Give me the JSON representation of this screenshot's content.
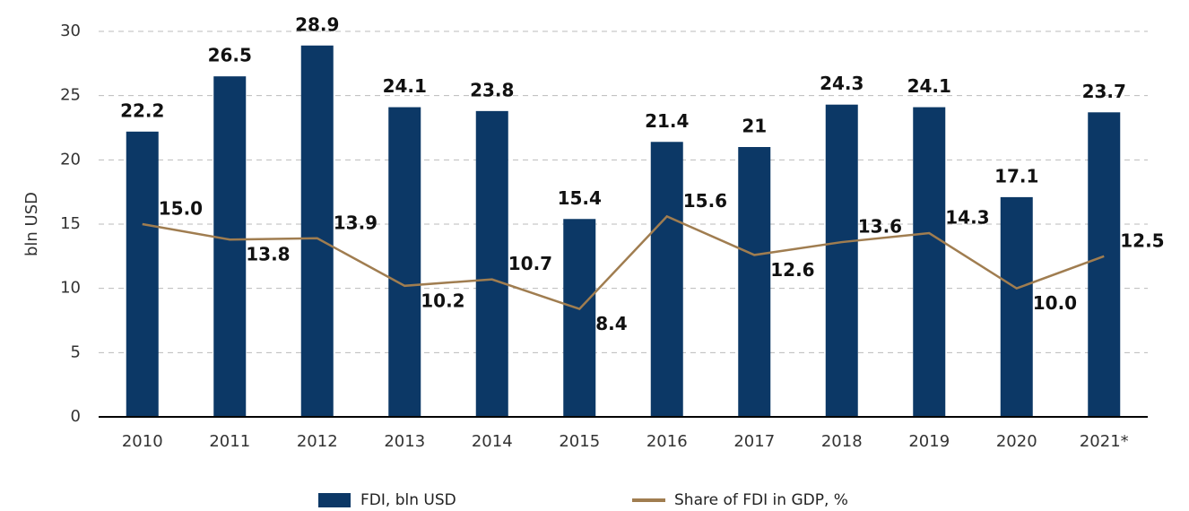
{
  "chart_data": {
    "type": "bar",
    "y_label": "bln USD",
    "categories": [
      "2010",
      "2011",
      "2012",
      "2013",
      "2014",
      "2015",
      "2016",
      "2017",
      "2018",
      "2019",
      "2020",
      "2021*"
    ],
    "series": [
      {
        "name": "FDI, bln USD",
        "type": "bar",
        "color": "#0c3866",
        "values": [
          22.2,
          26.5,
          28.9,
          24.1,
          23.8,
          15.4,
          21.4,
          21,
          24.3,
          24.1,
          17.1,
          23.7
        ]
      },
      {
        "name": "Share of FDI in GDP, %",
        "type": "line",
        "color": "#a07d50",
        "values": [
          15.0,
          13.8,
          13.9,
          10.2,
          10.7,
          8.4,
          15.6,
          12.6,
          13.6,
          14.3,
          10.0,
          12.5
        ],
        "value_labels": [
          "15.0",
          "13.8",
          "13.9",
          "10.2",
          "10.7",
          "8.4",
          "15.6",
          "12.6",
          "13.6",
          "14.3",
          "10.0",
          "12.5"
        ]
      }
    ],
    "ylim": [
      0,
      30
    ],
    "yticks": [
      0,
      5,
      10,
      15,
      20,
      25,
      30
    ],
    "grid": true,
    "legend": "bottom"
  }
}
